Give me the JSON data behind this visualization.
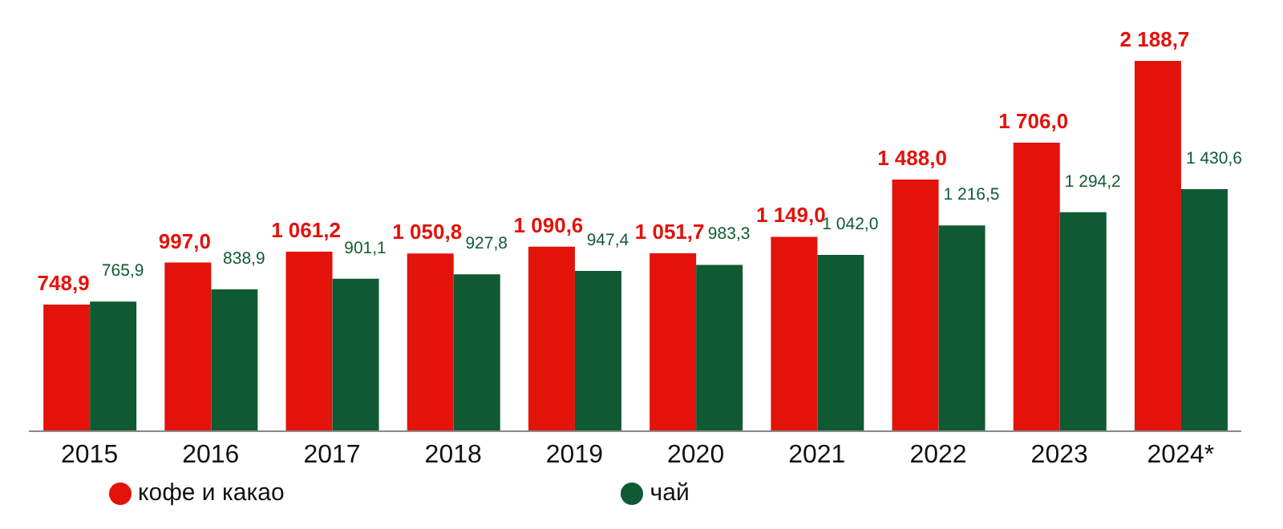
{
  "chart_data": {
    "type": "bar",
    "categories": [
      "2015",
      "2016",
      "2017",
      "2018",
      "2019",
      "2020",
      "2021",
      "2022",
      "2023",
      "2024*"
    ],
    "series": [
      {
        "name": "кофе и какао",
        "color": "#e3120b",
        "values": [
          748.9,
          997.0,
          1061.2,
          1050.8,
          1090.6,
          1051.7,
          1149.0,
          1488.0,
          1706.0,
          2188.7
        ],
        "value_labels": [
          "748,9",
          "997,0",
          "1 061,2",
          "1 050,8",
          "1 090,6",
          "1 051,7",
          "1 149,0",
          "1 488,0",
          "1 706,0",
          "2 188,7"
        ]
      },
      {
        "name": "чай",
        "color": "#0f5a32",
        "values": [
          765.9,
          838.9,
          901.1,
          927.8,
          947.4,
          983.3,
          1042.0,
          1216.5,
          1294.2,
          1430.6
        ],
        "value_labels": [
          "765,9",
          "838,9",
          "901,1",
          "927,8",
          "947,4",
          "983,3",
          "1 042,0",
          "1 216,5",
          "1 294,2",
          "1 430,6"
        ]
      }
    ],
    "legend": "bottom",
    "grid": false
  }
}
